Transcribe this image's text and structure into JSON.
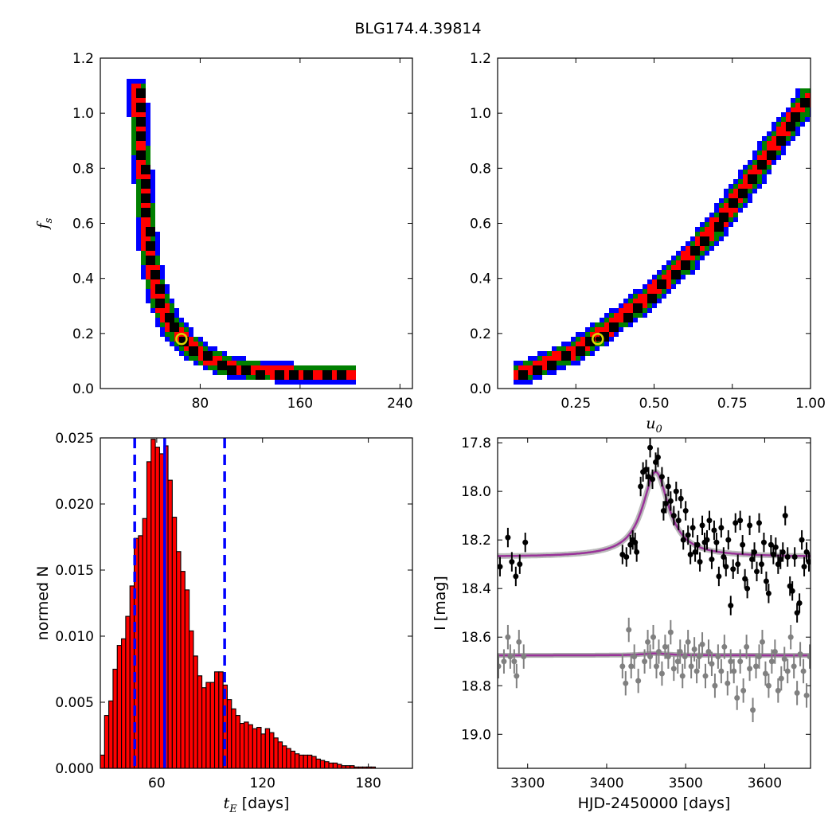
{
  "figure_title": "BLG174.4.39814",
  "chart_data": [
    {
      "id": "tE-fs",
      "type": "heatmap",
      "title": "",
      "xlabel": "",
      "ylabel": "f_s",
      "xlim": [
        0,
        250
      ],
      "ylim": [
        0,
        1.2
      ],
      "xticks": [
        80,
        160,
        240
      ],
      "xtick_labels": [
        "80",
        "160",
        "240"
      ],
      "yticks": [
        0,
        0.2,
        0.4,
        0.6,
        0.8,
        1.0,
        1.2
      ],
      "ytick_labels": [
        "0.0",
        "0.2",
        "0.4",
        "0.6",
        "0.8",
        "1.0",
        "1.2"
      ],
      "levels": [
        "black",
        "red",
        "green",
        "blue"
      ],
      "colors": {
        "black": "#000000",
        "red": "#ff0000",
        "green": "#008000",
        "blue": "#0000ff"
      },
      "ridge": [
        [
          31,
          1.08
        ],
        [
          32,
          1.0
        ],
        [
          33,
          0.9
        ],
        [
          35,
          0.8
        ],
        [
          37,
          0.7
        ],
        [
          38,
          0.6
        ],
        [
          40,
          0.5
        ],
        [
          44,
          0.4
        ],
        [
          47,
          0.34
        ],
        [
          52,
          0.28
        ],
        [
          57,
          0.23
        ],
        [
          63,
          0.2
        ],
        [
          68,
          0.17
        ],
        [
          75,
          0.14
        ],
        [
          85,
          0.11
        ],
        [
          100,
          0.08
        ],
        [
          115,
          0.065
        ],
        [
          135,
          0.055
        ],
        [
          160,
          0.05
        ],
        [
          200,
          0.045
        ]
      ],
      "best_fit": {
        "x": 65,
        "y": 0.18
      },
      "grid": false
    },
    {
      "id": "u0-fs",
      "type": "heatmap",
      "title": "",
      "xlabel": "u_0",
      "ylabel": "",
      "xlim": [
        0,
        1.0
      ],
      "ylim": [
        0,
        1.2
      ],
      "xticks": [
        0.25,
        0.5,
        0.75,
        1.0
      ],
      "xtick_labels": [
        "0.25",
        "0.50",
        "0.75",
        "1.00"
      ],
      "yticks": [
        0,
        0.2,
        0.4,
        0.6,
        0.8,
        1.0,
        1.2
      ],
      "ytick_labels": [
        "0.0",
        "0.2",
        "0.4",
        "0.6",
        "0.8",
        "1.0",
        "1.2"
      ],
      "levels": [
        "black",
        "red",
        "green",
        "blue"
      ],
      "colors": {
        "black": "#000000",
        "red": "#ff0000",
        "green": "#008000",
        "blue": "#0000ff"
      },
      "ridge": [
        [
          0.08,
          0.05
        ],
        [
          0.15,
          0.08
        ],
        [
          0.25,
          0.13
        ],
        [
          0.32,
          0.18
        ],
        [
          0.4,
          0.25
        ],
        [
          0.5,
          0.34
        ],
        [
          0.6,
          0.45
        ],
        [
          0.7,
          0.58
        ],
        [
          0.8,
          0.73
        ],
        [
          0.9,
          0.9
        ],
        [
          1.0,
          1.05
        ]
      ],
      "best_fit": {
        "x": 0.32,
        "y": 0.18
      },
      "grid": false
    },
    {
      "id": "tE-hist",
      "type": "bar",
      "title": "",
      "xlabel": "t_E [days]",
      "ylabel": "normed N",
      "xlim": [
        28,
        205
      ],
      "ylim": [
        0,
        0.025
      ],
      "bar_width": 2.4,
      "bar_color": "#ff0000",
      "xticks": [
        60,
        120,
        180
      ],
      "xtick_labels": [
        "60",
        "120",
        "180"
      ],
      "yticks": [
        0,
        0.005,
        0.01,
        0.015,
        0.02,
        0.025
      ],
      "ytick_labels": [
        "0.000",
        "0.005",
        "0.010",
        "0.015",
        "0.020",
        "0.025"
      ],
      "x": [
        29.2,
        31.6,
        34.0,
        36.4,
        38.8,
        41.2,
        43.6,
        46.0,
        48.4,
        50.8,
        53.2,
        55.6,
        58.0,
        60.4,
        62.8,
        65.2,
        67.6,
        70.0,
        72.4,
        74.8,
        77.2,
        79.6,
        82.0,
        84.4,
        86.8,
        89.2,
        91.6,
        94.0,
        96.4,
        98.8,
        101.2,
        103.6,
        106.0,
        108.4,
        110.8,
        113.2,
        115.6,
        118.0,
        120.4,
        122.8,
        125.2,
        127.6,
        130.0,
        132.4,
        134.8,
        137.2,
        139.6,
        142.0,
        144.4,
        146.8,
        149.2,
        151.6,
        154.0,
        156.4,
        158.8,
        161.2,
        163.6,
        166.0,
        168.4,
        170.8,
        173.2,
        175.6,
        178.0,
        180.4,
        182.8,
        185.2,
        187.6,
        190.0,
        192.4,
        194.8,
        197.2,
        199.6,
        202.0
      ],
      "values": [
        0.001,
        0.004,
        0.0051,
        0.0075,
        0.0093,
        0.0098,
        0.0115,
        0.0138,
        0.0174,
        0.0176,
        0.0189,
        0.0232,
        0.0249,
        0.0243,
        0.0238,
        0.0244,
        0.0218,
        0.019,
        0.0164,
        0.0149,
        0.0135,
        0.0104,
        0.0085,
        0.007,
        0.0061,
        0.0065,
        0.0065,
        0.0073,
        0.0073,
        0.0063,
        0.0052,
        0.0045,
        0.004,
        0.0034,
        0.0035,
        0.0033,
        0.003,
        0.0031,
        0.0026,
        0.003,
        0.0027,
        0.0023,
        0.002,
        0.0017,
        0.0015,
        0.0013,
        0.0011,
        0.001,
        0.001,
        0.001,
        0.0009,
        0.0007,
        0.0006,
        0.0005,
        0.0004,
        0.0004,
        0.0003,
        0.0002,
        0.0002,
        0.0002,
        0.0001,
        0.0001,
        0.0001,
        0.0001,
        0.0001,
        0.0,
        0.0,
        0.0,
        0.0,
        0.0,
        0.0,
        0.0,
        0.0
      ],
      "vlines": [
        {
          "x": 47.5,
          "style": "dashed",
          "color": "#0000ff"
        },
        {
          "x": 64.5,
          "style": "solid",
          "color": "#0000ff"
        },
        {
          "x": 98.5,
          "style": "dashed",
          "color": "#0000ff"
        }
      ],
      "grid": false
    },
    {
      "id": "lightcurve",
      "type": "scatter",
      "title": "",
      "xlabel": "HJD-2450000 [days]",
      "ylabel": "I [mag]",
      "xlim": [
        3262,
        3658
      ],
      "ylim": [
        19.14,
        17.78
      ],
      "y_inverted": true,
      "xticks": [
        3300,
        3400,
        3500,
        3600
      ],
      "xtick_labels": [
        "3300",
        "3400",
        "3500",
        "3600"
      ],
      "yticks": [
        17.8,
        18.0,
        18.2,
        18.4,
        18.6,
        18.8,
        19.0
      ],
      "ytick_labels": [
        "17.8",
        "18.0",
        "18.2",
        "18.4",
        "18.6",
        "18.8",
        "19.0"
      ],
      "model": {
        "baseline_top": 18.27,
        "baseline_bottom": 18.675,
        "peak_time": 3462,
        "peak_mag": 17.92,
        "tE": 20,
        "color": "#993399"
      },
      "series": [
        {
          "color": "#000000",
          "t": [
            3265,
            3275,
            3280,
            3285,
            3290,
            3297,
            3420,
            3425,
            3430,
            3433,
            3436,
            3438,
            3443,
            3446,
            3450,
            3453,
            3455,
            3458,
            3462,
            3465,
            3470,
            3472,
            3475,
            3478,
            3481,
            3485,
            3488,
            3491,
            3494,
            3497,
            3500,
            3503,
            3506,
            3509,
            3512,
            3515,
            3518,
            3521,
            3524,
            3527,
            3530,
            3533,
            3536,
            3539,
            3542,
            3545,
            3548,
            3551,
            3554,
            3557,
            3560,
            3563,
            3566,
            3569,
            3572,
            3575,
            3578,
            3581,
            3584,
            3587,
            3590,
            3593,
            3596,
            3599,
            3602,
            3605,
            3608,
            3611,
            3614,
            3617,
            3620,
            3623,
            3626,
            3629,
            3632,
            3635,
            3638,
            3641,
            3644,
            3647,
            3650,
            3653,
            3656
          ],
          "mag": [
            18.31,
            18.19,
            18.29,
            18.35,
            18.3,
            18.21,
            18.26,
            18.27,
            18.22,
            18.2,
            18.21,
            18.25,
            17.98,
            17.92,
            17.91,
            17.94,
            17.82,
            17.95,
            17.88,
            17.86,
            17.94,
            18.08,
            18.05,
            17.98,
            18.04,
            18.1,
            18.0,
            18.12,
            18.03,
            18.2,
            18.08,
            18.18,
            18.26,
            18.15,
            18.25,
            18.22,
            18.29,
            18.14,
            18.21,
            18.2,
            18.12,
            18.28,
            18.16,
            18.21,
            18.35,
            18.15,
            18.27,
            18.31,
            18.2,
            18.47,
            18.32,
            18.13,
            18.3,
            18.12,
            18.22,
            18.36,
            18.4,
            18.14,
            18.28,
            18.25,
            18.33,
            18.13,
            18.3,
            18.21,
            18.37,
            18.42,
            18.22,
            18.26,
            18.23,
            18.3,
            18.28,
            18.25,
            18.1,
            18.27,
            18.39,
            18.41,
            18.27,
            18.5,
            18.46,
            18.2,
            18.31,
            18.25,
            18.29
          ],
          "err": 0.04
        },
        {
          "color": "#808080",
          "t": [
            3263,
            3270,
            3275,
            3278,
            3283,
            3286,
            3289,
            3295,
            3420,
            3424,
            3428,
            3431,
            3435,
            3440,
            3448,
            3452,
            3455,
            3459,
            3463,
            3466,
            3470,
            3474,
            3478,
            3481,
            3485,
            3490,
            3493,
            3496,
            3499,
            3503,
            3507,
            3511,
            3514,
            3517,
            3521,
            3525,
            3529,
            3533,
            3537,
            3541,
            3545,
            3549,
            3553,
            3557,
            3561,
            3565,
            3569,
            3573,
            3577,
            3581,
            3585,
            3589,
            3593,
            3597,
            3601,
            3605,
            3609,
            3613,
            3617,
            3621,
            3625,
            3629,
            3633,
            3637,
            3641,
            3645,
            3649,
            3653,
            3657
          ],
          "mag": [
            18.72,
            18.7,
            18.6,
            18.68,
            18.7,
            18.76,
            18.62,
            18.68,
            18.72,
            18.79,
            18.57,
            18.72,
            18.68,
            18.78,
            18.7,
            18.62,
            18.68,
            18.6,
            18.72,
            18.66,
            18.75,
            18.64,
            18.68,
            18.58,
            18.73,
            18.7,
            18.66,
            18.76,
            18.68,
            18.62,
            18.72,
            18.65,
            18.74,
            18.68,
            18.63,
            18.76,
            18.66,
            18.71,
            18.8,
            18.68,
            18.74,
            18.64,
            18.79,
            18.7,
            18.74,
            18.85,
            18.7,
            18.82,
            18.64,
            18.73,
            18.9,
            18.72,
            18.68,
            18.62,
            18.75,
            18.8,
            18.7,
            18.66,
            18.82,
            18.77,
            18.69,
            18.74,
            18.6,
            18.72,
            18.83,
            18.67,
            18.74,
            18.84,
            18.68
          ],
          "err": 0.05
        }
      ],
      "grid": false
    }
  ]
}
